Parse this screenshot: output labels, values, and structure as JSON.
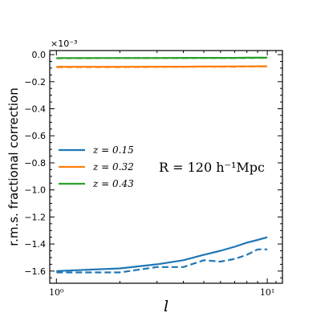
{
  "chart_data": {
    "type": "line",
    "title": "",
    "xlabel": "l",
    "ylabel": "r.m.s. fractional correction",
    "xscale": "log",
    "xlim": [
      0.93,
      11.8
    ],
    "ylim": [
      -1.69,
      0.03
    ],
    "y_multiplier": "×10⁻³",
    "x_tick_labels": [
      "10⁰",
      "10¹"
    ],
    "x_tick_values": [
      1,
      10
    ],
    "y_tick_values": [
      0.0,
      -0.2,
      -0.4,
      -0.6,
      -0.8,
      -1.0,
      -1.2,
      -1.4,
      -1.6
    ],
    "y_tick_labels": [
      "0.0",
      "−0.2",
      "−0.4",
      "−0.6",
      "−0.8",
      "−1.0",
      "−1.2",
      "−1.4",
      "−1.6"
    ],
    "annotation": "R = 120 h⁻¹Mpc",
    "legend_placement": "center-left",
    "grid": false,
    "series": [
      {
        "name": "z = 0.15",
        "color": "#1f77b4",
        "style": "solid",
        "x": [
          1,
          2,
          3,
          4,
          5,
          6,
          7,
          8,
          9,
          10
        ],
        "y": [
          -1.6,
          -1.58,
          -1.55,
          -1.52,
          -1.48,
          -1.45,
          -1.42,
          -1.39,
          -1.37,
          -1.35
        ]
      },
      {
        "name": "",
        "color": "#1f77b4",
        "style": "dashed",
        "x": [
          1,
          2,
          3,
          4,
          5,
          6,
          7,
          8,
          9,
          10
        ],
        "y": [
          -1.61,
          -1.61,
          -1.57,
          -1.57,
          -1.52,
          -1.53,
          -1.51,
          -1.48,
          -1.44,
          -1.44
        ]
      },
      {
        "name": "z = 0.32",
        "color": "#ff7f0e",
        "style": "solid",
        "x": [
          1,
          2,
          3,
          4,
          5,
          6,
          7,
          8,
          9,
          10
        ],
        "y": [
          -0.09,
          -0.09,
          -0.089,
          -0.089,
          -0.088,
          -0.088,
          -0.087,
          -0.087,
          -0.086,
          -0.086
        ]
      },
      {
        "name": "",
        "color": "#ff7f0e",
        "style": "dashed",
        "x": [
          1,
          2,
          3,
          4,
          5,
          6,
          7,
          8,
          9,
          10
        ],
        "y": [
          -0.092,
          -0.092,
          -0.091,
          -0.09,
          -0.09,
          -0.089,
          -0.089,
          -0.088,
          -0.088,
          -0.087
        ]
      },
      {
        "name": "z = 0.43",
        "color": "#2ca02c",
        "style": "solid",
        "x": [
          1,
          2,
          3,
          4,
          5,
          6,
          7,
          8,
          9,
          10
        ],
        "y": [
          -0.025,
          -0.025,
          -0.025,
          -0.024,
          -0.024,
          -0.024,
          -0.024,
          -0.023,
          -0.023,
          -0.023
        ]
      },
      {
        "name": "",
        "color": "#2ca02c",
        "style": "dashed",
        "x": [
          1,
          2,
          3,
          4,
          5,
          6,
          7,
          8,
          9,
          10
        ],
        "y": [
          -0.027,
          -0.026,
          -0.026,
          -0.026,
          -0.025,
          -0.025,
          -0.025,
          -0.025,
          -0.024,
          -0.024
        ]
      }
    ]
  }
}
